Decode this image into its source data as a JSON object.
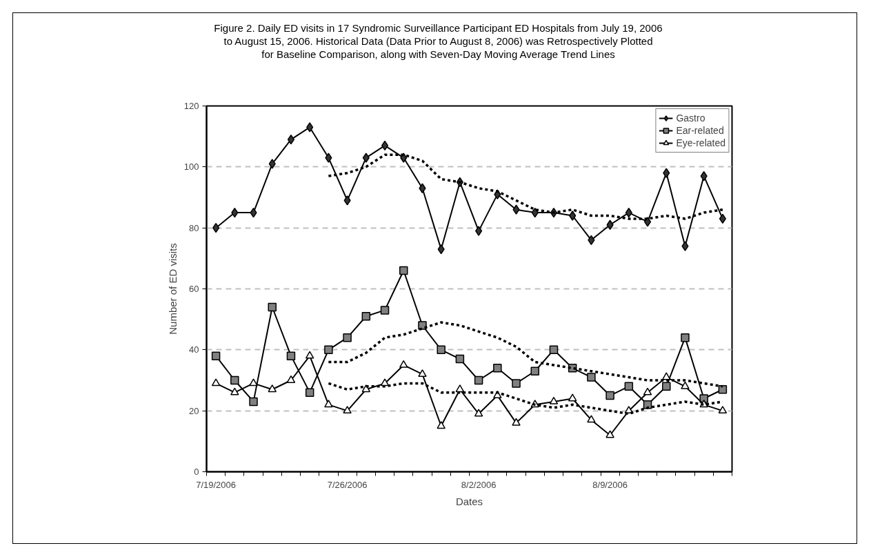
{
  "chart_data": {
    "type": "line",
    "title": "Figure 2. Daily ED visits in 17 Syndromic Surveillance Participant ED Hospitals from July 19, 2006\nto August 15, 2006. Historical Data (Data Prior to August 8, 2006) was Retrospectively Plotted\nfor Baseline Comparison, along with Seven-Day Moving Average Trend Lines",
    "xlabel": "Dates",
    "ylabel": "Number of ED visits",
    "categories": [
      "7/19/2006",
      null,
      null,
      null,
      null,
      null,
      null,
      "7/26/2006",
      null,
      null,
      null,
      null,
      null,
      null,
      "8/2/2006",
      null,
      null,
      null,
      null,
      null,
      null,
      "8/9/2006",
      null,
      null,
      null,
      null,
      null,
      null
    ],
    "ylim": [
      0,
      120
    ],
    "yticks": [
      0,
      20,
      40,
      60,
      80,
      100,
      120
    ],
    "grid": "y",
    "legend": "top right",
    "series": [
      {
        "name": "Gastro",
        "color": "#333333",
        "marker": "diamond",
        "line_style": "solid",
        "values": [
          80,
          85,
          85,
          101,
          109,
          113,
          103,
          89,
          103,
          107,
          103,
          93,
          73,
          95,
          79,
          91,
          86,
          85,
          85,
          84,
          76,
          81,
          85,
          82,
          98,
          74,
          97,
          83
        ]
      },
      {
        "name": "Ear-related",
        "color": "#808080",
        "marker": "square",
        "line_style": "solid",
        "values": [
          38,
          30,
          23,
          54,
          38,
          26,
          40,
          44,
          51,
          53,
          66,
          48,
          40,
          37,
          30,
          34,
          29,
          33,
          40,
          34,
          31,
          25,
          28,
          22,
          28,
          44,
          24,
          27
        ]
      },
      {
        "name": "Eye-related",
        "color": "#ffffff",
        "marker": "triangle",
        "line_style": "solid",
        "values": [
          29,
          26,
          29,
          27,
          30,
          38,
          22,
          20,
          27,
          29,
          35,
          32,
          15,
          27,
          19,
          25,
          16,
          22,
          23,
          24,
          17,
          12,
          20,
          26,
          31,
          28,
          22,
          20
        ]
      },
      {
        "color": "#000000",
        "marker": "none",
        "line_style": "dotted",
        "values": [
          null,
          null,
          null,
          null,
          null,
          null,
          97,
          98,
          100,
          104,
          104,
          102,
          96,
          95,
          93,
          92,
          89,
          86,
          85,
          86,
          84,
          84,
          83,
          83,
          84,
          83,
          85,
          86
        ]
      },
      {
        "color": "#000000",
        "marker": "none",
        "line_style": "dotted",
        "values": [
          null,
          null,
          null,
          null,
          null,
          null,
          36,
          36,
          39,
          44,
          45,
          47,
          49,
          48,
          46,
          44,
          41,
          36,
          35,
          34,
          33,
          32,
          31,
          30,
          30,
          30,
          29,
          28
        ]
      },
      {
        "color": "#000000",
        "marker": "none",
        "line_style": "dotted",
        "values": [
          null,
          null,
          null,
          null,
          null,
          null,
          29,
          27,
          28,
          28,
          29,
          29,
          26,
          26,
          26,
          26,
          24,
          22,
          21,
          22,
          21,
          20,
          19,
          21,
          22,
          23,
          22,
          23
        ]
      }
    ]
  }
}
